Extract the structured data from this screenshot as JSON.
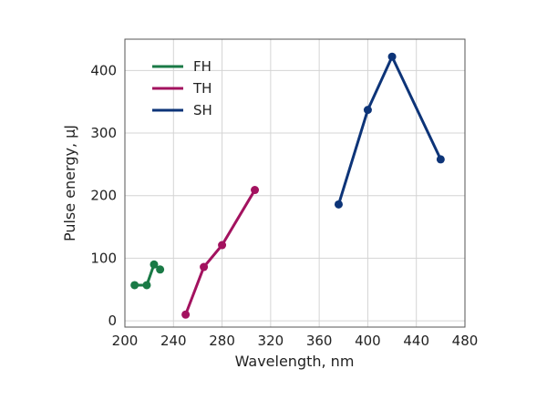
{
  "chart_data": {
    "type": "line",
    "xlabel": "Wavelength, nm",
    "ylabel": "Pulse energy, µJ",
    "xlim": [
      200,
      480
    ],
    "ylim": [
      -10,
      450
    ],
    "xticks": [
      200,
      240,
      280,
      320,
      360,
      400,
      440,
      480
    ],
    "yticks": [
      0,
      100,
      200,
      300,
      400
    ],
    "grid": true,
    "legend_position": "top-left",
    "series": [
      {
        "name": "FH",
        "color": "#1a7a46",
        "x": [
          208,
          218,
          224,
          229
        ],
        "y": [
          57,
          57,
          90,
          82
        ]
      },
      {
        "name": "TH",
        "color": "#a3125f",
        "x": [
          250,
          265,
          280,
          307
        ],
        "y": [
          10,
          86,
          121,
          209
        ]
      },
      {
        "name": "SH",
        "color": "#0d3478",
        "x": [
          376,
          400,
          420,
          460
        ],
        "y": [
          186,
          337,
          422,
          258
        ]
      }
    ]
  }
}
